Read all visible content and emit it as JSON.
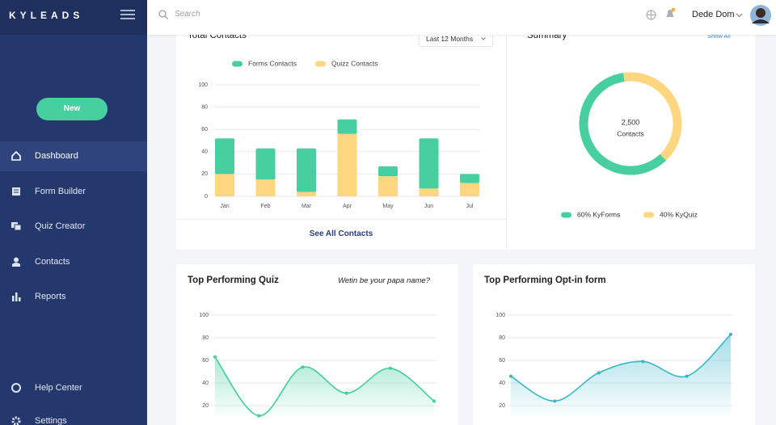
{
  "brand": "KYLEADS",
  "sidebar": {
    "new_button": "New",
    "nav": [
      "Dashboard",
      "Form Builder",
      "Quiz Creator",
      "Contacts",
      "Reports"
    ],
    "footer_nav": [
      "Help Center",
      "Settings"
    ]
  },
  "topbar": {
    "search_placeholder": "Search",
    "user_name": "Dede Dom"
  },
  "contacts_card": {
    "period": "Last 12 Months",
    "link": "See All Contacts"
  },
  "summary_card": {
    "link": "Show All",
    "center_value": "2,500",
    "center_label": "Contacts"
  },
  "quiz_card": {
    "subtitle": "Wetin be your papa name?"
  },
  "chart_data": [
    {
      "type": "bar",
      "title": "Total Contacts",
      "stacked": true,
      "categories": [
        "Jan",
        "Feb",
        "Mar",
        "Apr",
        "May",
        "Jun",
        "Jul"
      ],
      "series": [
        {
          "name": "Forms Contacts",
          "color": "#48cfa0",
          "values": [
            32,
            28,
            39,
            13,
            9,
            45,
            8
          ]
        },
        {
          "name": "Quizz Contacts",
          "color": "#fdd67f",
          "values": [
            20,
            15,
            4,
            56,
            18,
            7,
            12
          ]
        }
      ],
      "ylim": [
        0,
        100
      ],
      "yticks": [
        0,
        20,
        40,
        60,
        80,
        100
      ],
      "grid": true
    },
    {
      "type": "pie",
      "title": "Summary",
      "donut": true,
      "values": [
        60,
        40
      ],
      "value_labels": [
        "60% KyForms",
        "40% KyQuiz"
      ],
      "colors": [
        "#48cfa0",
        "#fdd67f"
      ]
    },
    {
      "type": "line",
      "title": "Top Performing Quiz",
      "categories": [
        null,
        null,
        null,
        null,
        null,
        null
      ],
      "values": [
        63,
        11,
        54,
        31,
        53,
        24
      ],
      "color": "#3ecf9c",
      "area": true,
      "ylim": [
        10,
        100
      ],
      "yticks": [
        20,
        40,
        60,
        80,
        100
      ],
      "grid": true
    },
    {
      "type": "line",
      "title": "Top Performing Opt-in form",
      "categories": [
        null,
        null,
        null,
        null,
        null,
        null
      ],
      "values": [
        46,
        24,
        49,
        59,
        46,
        83
      ],
      "color": "#38b6c8",
      "area": true,
      "ylim": [
        10,
        100
      ],
      "yticks": [
        20,
        40,
        60,
        80,
        100
      ],
      "grid": true
    }
  ]
}
